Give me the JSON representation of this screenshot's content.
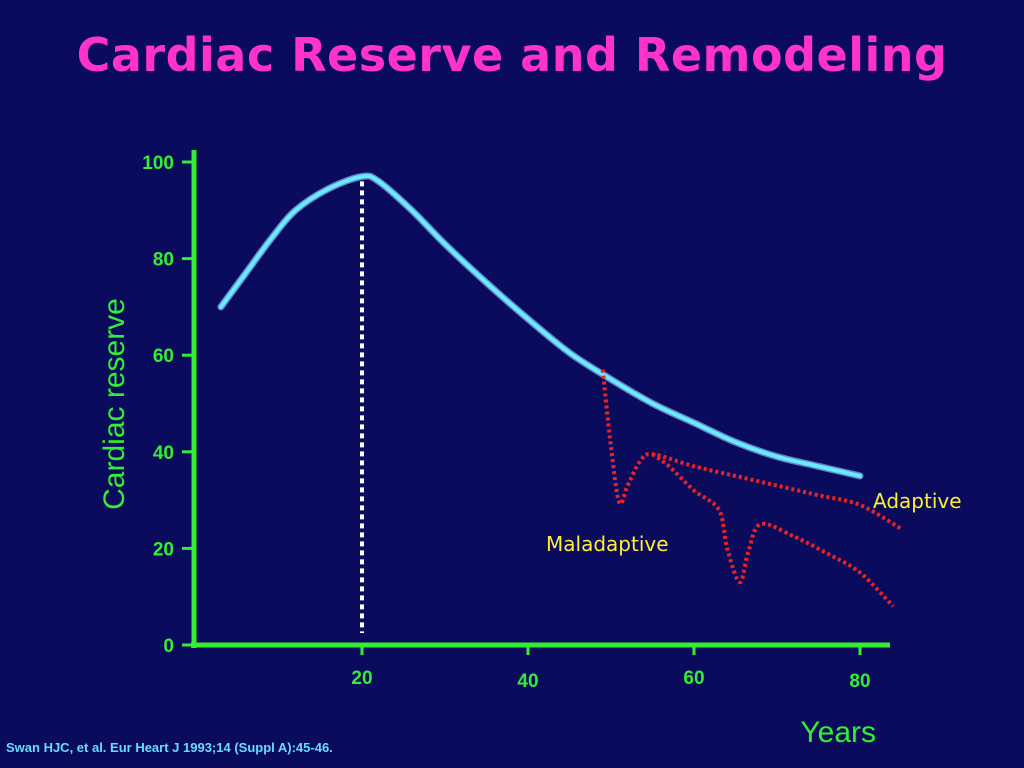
{
  "chart_data": {
    "type": "line",
    "title": "Cardiac Reserve and Remodeling",
    "xlabel": "Years",
    "ylabel": "Cardiac reserve",
    "xlim": [
      0,
      84
    ],
    "ylim": [
      0,
      100
    ],
    "x_ticks": [
      20,
      40,
      60,
      80
    ],
    "y_ticks": [
      0,
      20,
      40,
      60,
      80,
      100
    ],
    "grid": false,
    "colors": {
      "background": "#0b0b5e",
      "title": "#ff33cc",
      "axis": "#33ee33",
      "main_curve": "#66eeff",
      "remodeling_curves": "#ee2222",
      "annotation_text": "#ffee33",
      "marker_line": "#ffffff",
      "citation": "#66ddff"
    },
    "peak_marker_x": 20,
    "series": [
      {
        "style": "solid",
        "points": [
          [
            3,
            70
          ],
          [
            6,
            77
          ],
          [
            9,
            84
          ],
          [
            12,
            90
          ],
          [
            16,
            94.5
          ],
          [
            20,
            97
          ],
          [
            22,
            96
          ],
          [
            26,
            90
          ],
          [
            30,
            83
          ],
          [
            35,
            75
          ],
          [
            40,
            67.5
          ],
          [
            45,
            60.5
          ],
          [
            50,
            55
          ],
          [
            55,
            50
          ],
          [
            60,
            46
          ],
          [
            65,
            42
          ],
          [
            70,
            39
          ],
          [
            75,
            37
          ],
          [
            80,
            35
          ]
        ]
      },
      {
        "style": "dotted",
        "annotation": "Adaptive",
        "points": [
          [
            49,
            57
          ],
          [
            50,
            41
          ],
          [
            51,
            29.5
          ],
          [
            52,
            33
          ],
          [
            53.5,
            38
          ],
          [
            55,
            39.5
          ],
          [
            60,
            37
          ],
          [
            65,
            35
          ],
          [
            70,
            33
          ],
          [
            75,
            31
          ],
          [
            80,
            29
          ],
          [
            85,
            24
          ]
        ]
      },
      {
        "style": "dotted",
        "annotation": "Maladaptive",
        "points": [
          [
            55,
            39.5
          ],
          [
            57,
            37
          ],
          [
            60,
            32
          ],
          [
            63,
            28
          ],
          [
            64,
            20
          ],
          [
            65.5,
            13
          ],
          [
            66.5,
            19
          ],
          [
            68,
            25
          ],
          [
            72,
            22.5
          ],
          [
            76,
            19
          ],
          [
            80,
            15
          ],
          [
            84,
            8
          ]
        ]
      }
    ],
    "annotations": [
      "Adaptive",
      "Maladaptive"
    ]
  },
  "citation": "Swan HJC, et al. Eur Heart J 1993;14 (Suppl A):45-46."
}
